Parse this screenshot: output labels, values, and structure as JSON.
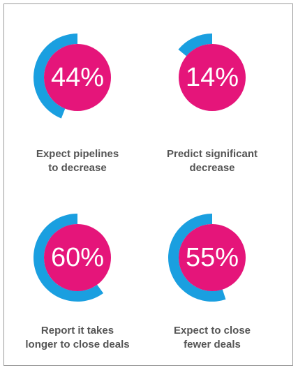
{
  "colors": {
    "ring": "#1a9fe0",
    "disc": "#e5157a",
    "caption": "#555555"
  },
  "chart_data": [
    {
      "type": "pie",
      "value": 44,
      "label": "44%",
      "caption_lines": [
        "Expect pipelines",
        "to decrease"
      ]
    },
    {
      "type": "pie",
      "value": 14,
      "label": "14%",
      "caption_lines": [
        "Predict significant",
        "decrease"
      ]
    },
    {
      "type": "pie",
      "value": 60,
      "label": "60%",
      "caption_lines": [
        "Report it takes",
        "longer to close deals"
      ]
    },
    {
      "type": "pie",
      "value": 55,
      "label": "55%",
      "caption_lines": [
        "Expect to close",
        "fewer deals"
      ]
    }
  ]
}
